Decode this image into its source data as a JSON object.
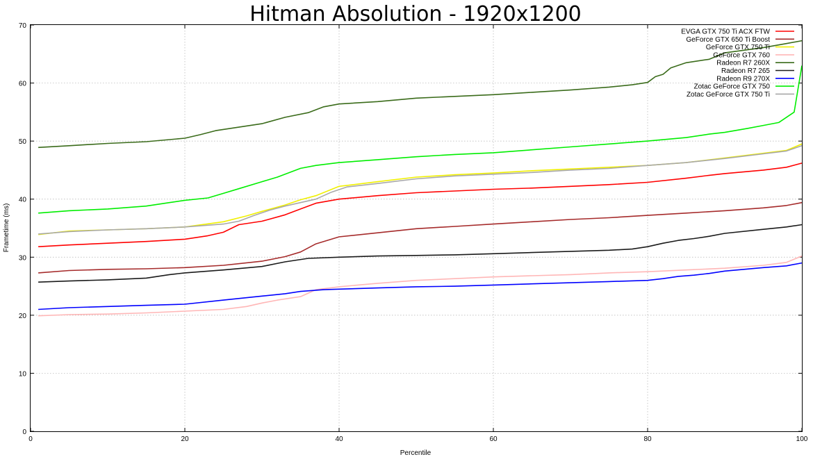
{
  "chart_data": {
    "type": "line",
    "title": "Hitman Absolution - 1920x1200",
    "xlabel": "Percentile",
    "ylabel": "Frametime (ms)",
    "xlim": [
      0,
      100
    ],
    "ylim": [
      0,
      70
    ],
    "xticks": [
      0,
      20,
      40,
      60,
      80,
      100
    ],
    "yticks": [
      0,
      10,
      20,
      30,
      40,
      50,
      60,
      70
    ],
    "grid": true,
    "legend_position": "top-right",
    "series": [
      {
        "name": "EVGA GTX 750 Ti ACX FTW",
        "color": "#ff0000",
        "points": [
          [
            1,
            31.8
          ],
          [
            5,
            32.1
          ],
          [
            10,
            32.4
          ],
          [
            15,
            32.7
          ],
          [
            20,
            33.1
          ],
          [
            23,
            33.7
          ],
          [
            25,
            34.3
          ],
          [
            27,
            35.6
          ],
          [
            30,
            36.2
          ],
          [
            33,
            37.3
          ],
          [
            35,
            38.3
          ],
          [
            37,
            39.3
          ],
          [
            40,
            40.0
          ],
          [
            45,
            40.6
          ],
          [
            50,
            41.1
          ],
          [
            55,
            41.4
          ],
          [
            60,
            41.7
          ],
          [
            65,
            41.9
          ],
          [
            70,
            42.2
          ],
          [
            75,
            42.5
          ],
          [
            80,
            42.9
          ],
          [
            85,
            43.6
          ],
          [
            88,
            44.1
          ],
          [
            90,
            44.4
          ],
          [
            95,
            45.0
          ],
          [
            98,
            45.5
          ],
          [
            100,
            46.2
          ]
        ]
      },
      {
        "name": "GeForce GTX 650 Ti Boost",
        "color": "#a52a2a",
        "points": [
          [
            1,
            27.3
          ],
          [
            5,
            27.7
          ],
          [
            10,
            27.9
          ],
          [
            15,
            28.0
          ],
          [
            20,
            28.2
          ],
          [
            25,
            28.6
          ],
          [
            30,
            29.3
          ],
          [
            33,
            30.1
          ],
          [
            35,
            30.9
          ],
          [
            37,
            32.3
          ],
          [
            40,
            33.5
          ],
          [
            45,
            34.2
          ],
          [
            50,
            34.9
          ],
          [
            55,
            35.3
          ],
          [
            60,
            35.7
          ],
          [
            65,
            36.1
          ],
          [
            70,
            36.5
          ],
          [
            75,
            36.8
          ],
          [
            80,
            37.2
          ],
          [
            85,
            37.6
          ],
          [
            90,
            38.0
          ],
          [
            95,
            38.5
          ],
          [
            98,
            38.9
          ],
          [
            100,
            39.4
          ]
        ]
      },
      {
        "name": "GeForce GTX 750 Ti",
        "color": "#f0f000",
        "points": [
          [
            1,
            33.9
          ],
          [
            5,
            34.5
          ],
          [
            10,
            34.7
          ],
          [
            15,
            34.9
          ],
          [
            20,
            35.2
          ],
          [
            25,
            36.1
          ],
          [
            28,
            37.1
          ],
          [
            30,
            37.9
          ],
          [
            33,
            39.0
          ],
          [
            35,
            39.9
          ],
          [
            37,
            40.6
          ],
          [
            40,
            42.2
          ],
          [
            45,
            43.0
          ],
          [
            50,
            43.8
          ],
          [
            55,
            44.2
          ],
          [
            60,
            44.5
          ],
          [
            65,
            44.9
          ],
          [
            70,
            45.2
          ],
          [
            75,
            45.5
          ],
          [
            80,
            45.8
          ],
          [
            85,
            46.3
          ],
          [
            90,
            47.1
          ],
          [
            95,
            47.9
          ],
          [
            98,
            48.4
          ],
          [
            100,
            49.5
          ]
        ]
      },
      {
        "name": "GeForce GTX 760",
        "color": "#ffb6b6",
        "points": [
          [
            1,
            19.9
          ],
          [
            5,
            20.1
          ],
          [
            10,
            20.2
          ],
          [
            15,
            20.4
          ],
          [
            20,
            20.7
          ],
          [
            25,
            21.0
          ],
          [
            28,
            21.5
          ],
          [
            30,
            22.1
          ],
          [
            32,
            22.6
          ],
          [
            35,
            23.2
          ],
          [
            37,
            24.4
          ],
          [
            40,
            24.9
          ],
          [
            45,
            25.5
          ],
          [
            50,
            26.0
          ],
          [
            55,
            26.3
          ],
          [
            60,
            26.6
          ],
          [
            65,
            26.8
          ],
          [
            70,
            27.0
          ],
          [
            75,
            27.3
          ],
          [
            80,
            27.5
          ],
          [
            85,
            27.8
          ],
          [
            90,
            28.1
          ],
          [
            95,
            28.6
          ],
          [
            98,
            29.1
          ],
          [
            100,
            30.2
          ]
        ]
      },
      {
        "name": "Radeon R7 260X",
        "color": "#3a6b1a",
        "points": [
          [
            1,
            48.9
          ],
          [
            5,
            49.2
          ],
          [
            10,
            49.6
          ],
          [
            15,
            49.9
          ],
          [
            20,
            50.5
          ],
          [
            22,
            51.1
          ],
          [
            24,
            51.8
          ],
          [
            27,
            52.4
          ],
          [
            30,
            53.0
          ],
          [
            33,
            54.1
          ],
          [
            36,
            54.9
          ],
          [
            38,
            55.9
          ],
          [
            40,
            56.4
          ],
          [
            45,
            56.8
          ],
          [
            50,
            57.4
          ],
          [
            55,
            57.7
          ],
          [
            60,
            58.0
          ],
          [
            65,
            58.4
          ],
          [
            70,
            58.8
          ],
          [
            75,
            59.3
          ],
          [
            78,
            59.7
          ],
          [
            80,
            60.1
          ],
          [
            81,
            61.1
          ],
          [
            82,
            61.5
          ],
          [
            83,
            62.6
          ],
          [
            85,
            63.5
          ],
          [
            88,
            64.1
          ],
          [
            90,
            65.2
          ],
          [
            95,
            66.1
          ],
          [
            98,
            66.8
          ],
          [
            100,
            67.3
          ]
        ]
      },
      {
        "name": "Radeon R7 265",
        "color": "#1a1a1a",
        "points": [
          [
            1,
            25.7
          ],
          [
            5,
            25.9
          ],
          [
            10,
            26.1
          ],
          [
            15,
            26.4
          ],
          [
            18,
            27.0
          ],
          [
            20,
            27.3
          ],
          [
            25,
            27.8
          ],
          [
            30,
            28.4
          ],
          [
            33,
            29.2
          ],
          [
            36,
            29.8
          ],
          [
            40,
            30.0
          ],
          [
            45,
            30.2
          ],
          [
            50,
            30.3
          ],
          [
            55,
            30.4
          ],
          [
            60,
            30.6
          ],
          [
            65,
            30.8
          ],
          [
            70,
            31.0
          ],
          [
            75,
            31.2
          ],
          [
            78,
            31.4
          ],
          [
            80,
            31.8
          ],
          [
            82,
            32.4
          ],
          [
            84,
            32.9
          ],
          [
            86,
            33.2
          ],
          [
            88,
            33.6
          ],
          [
            90,
            34.1
          ],
          [
            95,
            34.8
          ],
          [
            98,
            35.2
          ],
          [
            100,
            35.6
          ]
        ]
      },
      {
        "name": "Radeon R9 270X",
        "color": "#0000ff",
        "points": [
          [
            1,
            21.0
          ],
          [
            5,
            21.3
          ],
          [
            10,
            21.5
          ],
          [
            15,
            21.7
          ],
          [
            20,
            21.9
          ],
          [
            25,
            22.6
          ],
          [
            30,
            23.3
          ],
          [
            33,
            23.7
          ],
          [
            35,
            24.1
          ],
          [
            38,
            24.4
          ],
          [
            40,
            24.5
          ],
          [
            45,
            24.7
          ],
          [
            50,
            24.9
          ],
          [
            55,
            25.0
          ],
          [
            60,
            25.2
          ],
          [
            65,
            25.4
          ],
          [
            70,
            25.6
          ],
          [
            75,
            25.8
          ],
          [
            80,
            26.0
          ],
          [
            82,
            26.3
          ],
          [
            84,
            26.7
          ],
          [
            86,
            26.9
          ],
          [
            88,
            27.2
          ],
          [
            90,
            27.6
          ],
          [
            95,
            28.2
          ],
          [
            98,
            28.5
          ],
          [
            100,
            29.0
          ]
        ]
      },
      {
        "name": "Zotac GeForce GTX 750",
        "color": "#00ee00",
        "points": [
          [
            1,
            37.6
          ],
          [
            5,
            38.0
          ],
          [
            10,
            38.3
          ],
          [
            15,
            38.8
          ],
          [
            18,
            39.4
          ],
          [
            20,
            39.8
          ],
          [
            23,
            40.2
          ],
          [
            25,
            41.0
          ],
          [
            27,
            41.8
          ],
          [
            30,
            43.0
          ],
          [
            32,
            43.8
          ],
          [
            35,
            45.3
          ],
          [
            37,
            45.8
          ],
          [
            40,
            46.3
          ],
          [
            45,
            46.8
          ],
          [
            50,
            47.3
          ],
          [
            55,
            47.7
          ],
          [
            60,
            48.0
          ],
          [
            65,
            48.5
          ],
          [
            70,
            49.0
          ],
          [
            75,
            49.5
          ],
          [
            80,
            50.0
          ],
          [
            85,
            50.6
          ],
          [
            88,
            51.2
          ],
          [
            90,
            51.5
          ],
          [
            93,
            52.2
          ],
          [
            95,
            52.7
          ],
          [
            97,
            53.2
          ],
          [
            99,
            55.0
          ],
          [
            100,
            63.0
          ]
        ]
      },
      {
        "name": "Zotac GeForce GTX 750 Ti",
        "color": "#a8a8a8",
        "points": [
          [
            1,
            34.0
          ],
          [
            5,
            34.4
          ],
          [
            10,
            34.7
          ],
          [
            15,
            34.9
          ],
          [
            20,
            35.2
          ],
          [
            25,
            35.7
          ],
          [
            27,
            36.2
          ],
          [
            29,
            37.2
          ],
          [
            31,
            38.1
          ],
          [
            33,
            38.8
          ],
          [
            35,
            39.4
          ],
          [
            37,
            40.0
          ],
          [
            39,
            41.2
          ],
          [
            41,
            42.1
          ],
          [
            45,
            42.7
          ],
          [
            50,
            43.5
          ],
          [
            55,
            44.0
          ],
          [
            60,
            44.3
          ],
          [
            65,
            44.6
          ],
          [
            70,
            45.0
          ],
          [
            75,
            45.3
          ],
          [
            80,
            45.8
          ],
          [
            85,
            46.3
          ],
          [
            90,
            47.0
          ],
          [
            95,
            47.8
          ],
          [
            98,
            48.3
          ],
          [
            100,
            49.2
          ]
        ]
      }
    ]
  }
}
